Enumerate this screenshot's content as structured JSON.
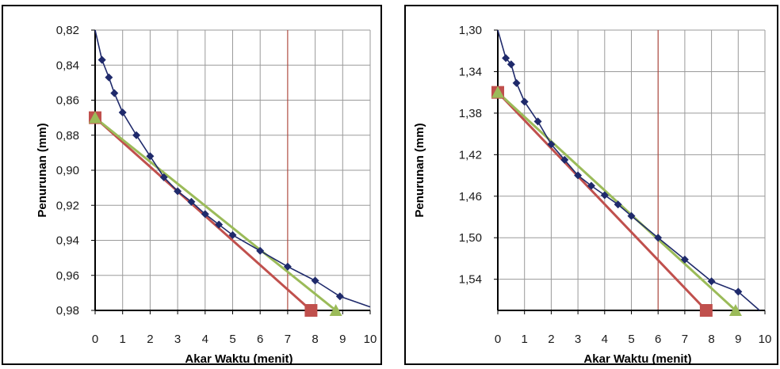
{
  "chart_data": [
    {
      "type": "line",
      "xlabel": "Akar Waktu (menit)",
      "ylabel": "Penurunan (mm)",
      "xlim": [
        0,
        10
      ],
      "ylim": [
        0.82,
        0.98
      ],
      "y_inverted": true,
      "grid": true,
      "x_ticks": [
        "0",
        "1",
        "2",
        "3",
        "4",
        "5",
        "6",
        "7",
        "8",
        "9",
        "10"
      ],
      "y_ticks": [
        "0,82",
        "0,84",
        "0,86",
        "0,88",
        "0,90",
        "0,92",
        "0,94",
        "0,96",
        "0,98"
      ],
      "vertical_marker_x": 7,
      "series": [
        {
          "role": "measured",
          "color": "#1f2a6b",
          "marker": "diamond",
          "x": [
            0,
            0.25,
            0.5,
            0.7,
            1,
            1.5,
            2,
            2.5,
            3,
            3.5,
            4,
            4.5,
            5,
            6,
            7,
            8,
            8.9,
            10
          ],
          "y": [
            0.82,
            0.837,
            0.847,
            0.856,
            0.867,
            0.88,
            0.892,
            0.904,
            0.912,
            0.918,
            0.925,
            0.931,
            0.937,
            0.946,
            0.955,
            0.963,
            0.972,
            0.978
          ],
          "marked": [
            1,
            2,
            3,
            4,
            5,
            6,
            7,
            8,
            9,
            10,
            11,
            12,
            13,
            14,
            15,
            16
          ]
        },
        {
          "role": "initial-tangent",
          "color": "#c0504d",
          "marker": "square",
          "x": [
            0,
            7.85
          ],
          "y": [
            0.87,
            0.98
          ]
        },
        {
          "role": "extended-tangent",
          "color": "#9bbb59",
          "marker": "triangle",
          "x": [
            0,
            8.75
          ],
          "y": [
            0.87,
            0.98
          ]
        }
      ]
    },
    {
      "type": "line",
      "xlabel": "Akar Waktu (menit)",
      "ylabel": "Penurunan (mm)",
      "xlim": [
        0,
        10
      ],
      "ylim": [
        1.3,
        1.57
      ],
      "y_inverted": true,
      "grid": true,
      "x_ticks": [
        "0",
        "1",
        "2",
        "3",
        "4",
        "5",
        "6",
        "7",
        "8",
        "9",
        "10"
      ],
      "y_ticks": [
        "1,30",
        "1,34",
        "1,38",
        "1,42",
        "1,46",
        "1,50",
        "1,54"
      ],
      "vertical_marker_x": 6,
      "series": [
        {
          "role": "measured",
          "color": "#1f2a6b",
          "marker": "diamond",
          "x": [
            0,
            0.3,
            0.5,
            0.7,
            1,
            1.5,
            2,
            2.5,
            3,
            3.5,
            4,
            4.5,
            5,
            6,
            7,
            8,
            9,
            9.8
          ],
          "y": [
            1.3,
            1.327,
            1.333,
            1.351,
            1.369,
            1.388,
            1.41,
            1.425,
            1.44,
            1.45,
            1.459,
            1.468,
            1.479,
            1.5,
            1.521,
            1.542,
            1.552,
            1.57
          ],
          "marked": [
            1,
            2,
            3,
            4,
            5,
            6,
            7,
            8,
            9,
            10,
            11,
            12,
            13,
            14,
            15,
            16
          ]
        },
        {
          "role": "initial-tangent",
          "color": "#c0504d",
          "marker": "square",
          "x": [
            0,
            7.8
          ],
          "y": [
            1.36,
            1.57
          ]
        },
        {
          "role": "extended-tangent",
          "color": "#9bbb59",
          "marker": "triangle",
          "x": [
            0,
            8.9
          ],
          "y": [
            1.36,
            1.57
          ]
        }
      ]
    }
  ]
}
